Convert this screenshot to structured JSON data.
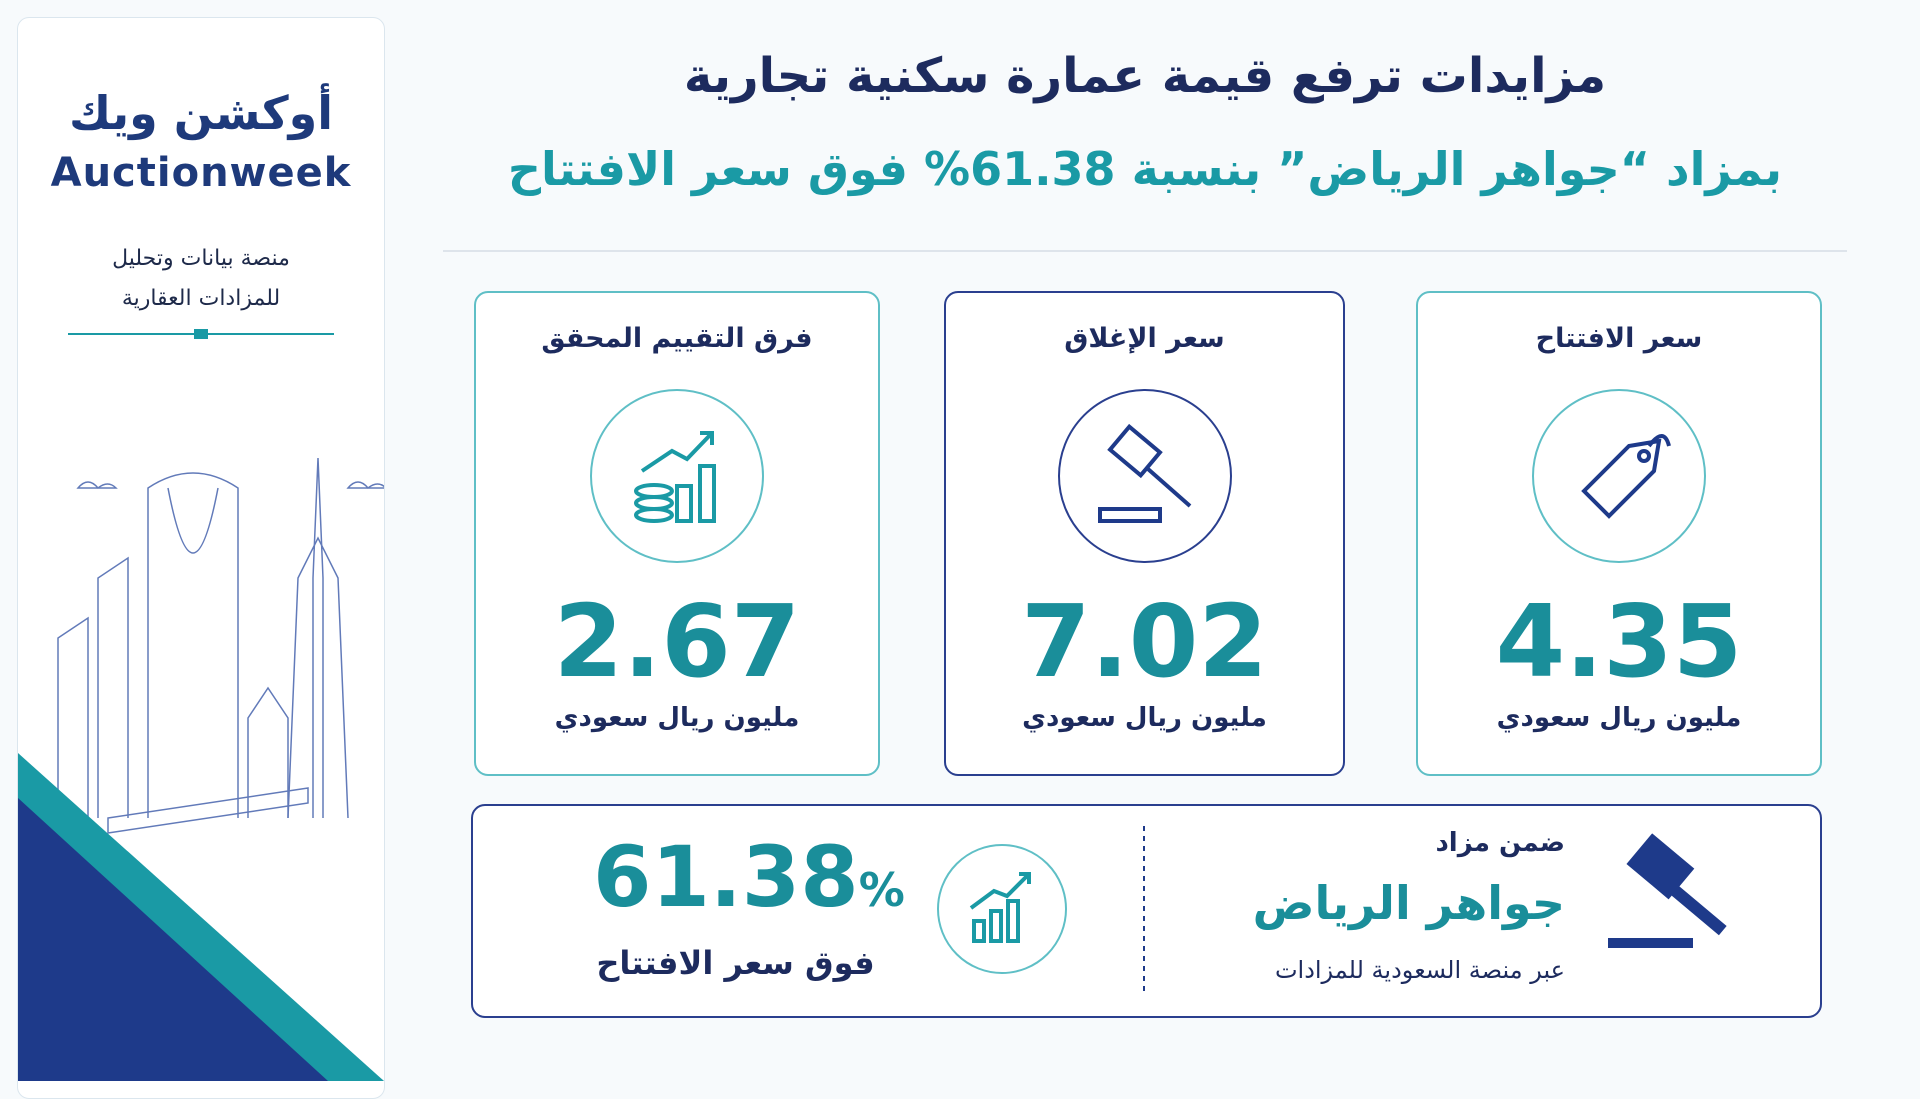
{
  "sidebar": {
    "logo_arabic": "أوكشن ويك",
    "logo_latin": "Auctionweek",
    "tagline": [
      "منصة بيانات وتحليل",
      "للمزادات العقارية"
    ]
  },
  "header": {
    "title": "مزايدات ترفع قيمة عمارة سكنية تجارية",
    "subtitle": "بمزاد “جواهر الرياض” بنسبة 61.38% فوق سعر الافتتاح"
  },
  "cards": [
    {
      "label": "سعر الافتتاح",
      "value": "4.35",
      "unit": "مليون ريال سعودي"
    },
    {
      "label": "سعر الإغلاق",
      "value": "7.02",
      "unit": "مليون ريال سعودي"
    },
    {
      "label": "فرق التقييم المحقق",
      "value": "2.67",
      "unit": "مليون ريال سعودي"
    }
  ],
  "banner": {
    "within": "ضمن مزاد",
    "auction_name": "جواهر الرياض",
    "platform": "عبر منصة السعودية للمزادات",
    "percent": "61.38",
    "percent_sign": "%",
    "percent_caption": "فوق سعر الافتتاح"
  }
}
